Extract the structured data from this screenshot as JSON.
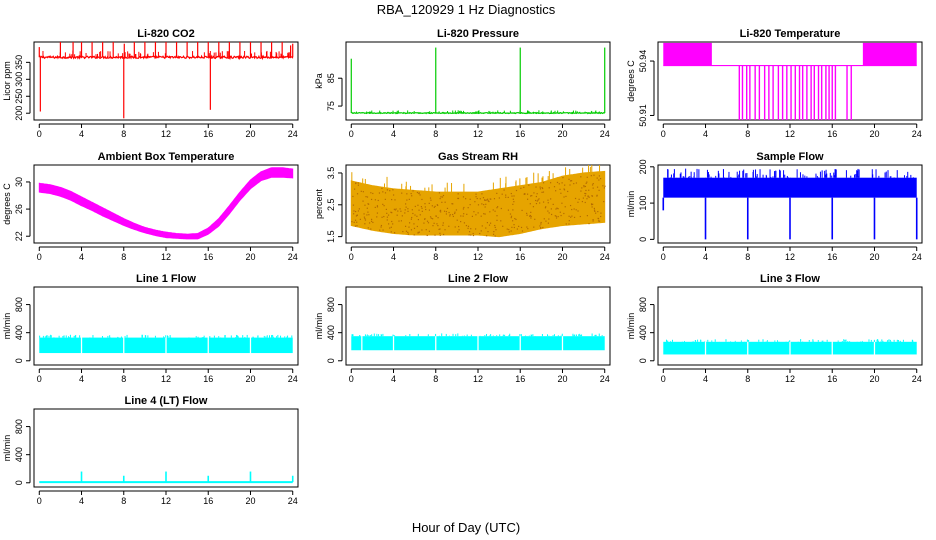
{
  "figure": {
    "title": "RBA_120929  1 Hz Diagnostics",
    "xlabel": "Hour of Day (UTC)"
  },
  "chart_data": [
    {
      "type": "line",
      "title": "Li-820 CO2",
      "ylabel": "Licor ppm",
      "color": "#ff0000",
      "xlim": [
        -0.5,
        24.5
      ],
      "ylim": [
        180,
        410
      ],
      "xticks": [
        0,
        4,
        8,
        12,
        16,
        20,
        24
      ],
      "yticks": [
        200,
        250,
        300,
        350
      ],
      "base": [
        [
          0,
          365
        ],
        [
          24,
          365
        ]
      ],
      "noise": 8,
      "spikes": [
        [
          0,
          395
        ],
        [
          0.1,
          205
        ],
        [
          2,
          410
        ],
        [
          3.2,
          410
        ],
        [
          4,
          410
        ],
        [
          5,
          410
        ],
        [
          6,
          410
        ],
        [
          7,
          410
        ],
        [
          8,
          185
        ],
        [
          8.05,
          405
        ],
        [
          9,
          410
        ],
        [
          10,
          410
        ],
        [
          11,
          410
        ],
        [
          12,
          410
        ],
        [
          13,
          410
        ],
        [
          14,
          410
        ],
        [
          15,
          410
        ],
        [
          16,
          410
        ],
        [
          16.2,
          210
        ],
        [
          17,
          410
        ],
        [
          18,
          410
        ],
        [
          19,
          410
        ],
        [
          20,
          410
        ],
        [
          21,
          410
        ],
        [
          22,
          410
        ],
        [
          23,
          410
        ],
        [
          23.8,
          400
        ],
        [
          24,
          405
        ]
      ]
    },
    {
      "type": "line",
      "title": "Li-820 Pressure",
      "ylabel": "kPa",
      "color": "#00cc00",
      "xlim": [
        -0.5,
        24.5
      ],
      "ylim": [
        70,
        98
      ],
      "xticks": [
        0,
        4,
        8,
        12,
        16,
        20,
        24
      ],
      "yticks": [
        75,
        85
      ],
      "base": [
        [
          0,
          72.5
        ],
        [
          24,
          72.5
        ]
      ],
      "noise": 0.4,
      "spikes": [
        [
          0,
          92
        ],
        [
          8,
          96
        ],
        [
          16,
          96
        ],
        [
          24,
          96
        ]
      ]
    },
    {
      "type": "line",
      "title": "Li-820 Temperature",
      "ylabel": "degrees C",
      "color": "#ff00ff",
      "xlim": [
        -0.5,
        24.5
      ],
      "ylim": [
        50.9075,
        50.9505
      ],
      "xticks": [
        0,
        4,
        8,
        12,
        16,
        20,
        24
      ],
      "yticks": [
        50.91,
        50.94
      ],
      "ytick_labels": [
        "50.91",
        "50.94"
      ],
      "bands": [
        {
          "x0": 0,
          "x1": 4.6,
          "ylow": 50.9375,
          "yhigh": 50.95
        },
        {
          "x0": 18.9,
          "x1": 24,
          "ylow": 50.9375,
          "yhigh": 50.95
        }
      ],
      "baseline": 50.9375,
      "drops": [
        [
          7.2,
          50.9075
        ],
        [
          7.5,
          50.9075
        ],
        [
          7.9,
          50.9075
        ],
        [
          8.2,
          50.9075
        ],
        [
          8.7,
          50.9075
        ],
        [
          9.1,
          50.9075
        ],
        [
          9.6,
          50.9075
        ],
        [
          10.0,
          50.9075
        ],
        [
          10.4,
          50.9075
        ],
        [
          10.9,
          50.9075
        ],
        [
          11.3,
          50.9075
        ],
        [
          11.7,
          50.9075
        ],
        [
          12.1,
          50.9075
        ],
        [
          12.5,
          50.9075
        ],
        [
          12.9,
          50.9075
        ],
        [
          13.2,
          50.9075
        ],
        [
          13.6,
          50.9075
        ],
        [
          14.0,
          50.9075
        ],
        [
          14.3,
          50.9075
        ],
        [
          14.7,
          50.9075
        ],
        [
          15.0,
          50.9075
        ],
        [
          15.4,
          50.9075
        ],
        [
          15.7,
          50.9075
        ],
        [
          16.0,
          50.9075
        ],
        [
          16.3,
          50.9075
        ],
        [
          17.4,
          50.9075
        ],
        [
          17.8,
          50.9075
        ]
      ]
    },
    {
      "type": "area",
      "title": "Ambient Box Temperature",
      "ylabel": "degrees C",
      "color": "#ff00ff",
      "xlim": [
        -0.5,
        24.5
      ],
      "ylim": [
        21,
        32.5
      ],
      "xticks": [
        0,
        4,
        8,
        12,
        16,
        20,
        24
      ],
      "yticks": [
        22,
        26,
        30
      ],
      "x": [
        0,
        1,
        2,
        3,
        4,
        5,
        6,
        7,
        8,
        9,
        10,
        11,
        12,
        13,
        14,
        15,
        16,
        17,
        18,
        19,
        20,
        21,
        22,
        23,
        24
      ],
      "low": [
        28.5,
        28.3,
        27.9,
        27.3,
        26.5,
        25.8,
        25.0,
        24.3,
        23.6,
        23.0,
        22.5,
        22.1,
        21.8,
        21.7,
        21.6,
        21.6,
        22.3,
        23.5,
        25.3,
        27.3,
        29.0,
        30.2,
        30.7,
        30.7,
        30.6
      ],
      "high": [
        29.8,
        29.6,
        29.2,
        28.6,
        27.8,
        27.0,
        26.2,
        25.4,
        24.6,
        23.9,
        23.3,
        22.9,
        22.6,
        22.4,
        22.3,
        22.4,
        23.2,
        24.6,
        26.5,
        28.5,
        30.3,
        31.5,
        32.1,
        32.1,
        31.9
      ]
    },
    {
      "type": "area",
      "title": "Gas Stream RH",
      "ylabel": "percent",
      "color": "#e6a400",
      "xlim": [
        -0.5,
        24.5
      ],
      "ylim": [
        1.3,
        3.75
      ],
      "xticks": [
        0,
        4,
        8,
        12,
        16,
        20,
        24
      ],
      "yticks": [
        1.5,
        2.5,
        3.5
      ],
      "x": [
        0,
        2,
        4,
        6,
        8,
        10,
        12,
        14,
        16,
        18,
        20,
        22,
        24
      ],
      "low": [
        1.85,
        1.7,
        1.6,
        1.55,
        1.55,
        1.55,
        1.55,
        1.5,
        1.6,
        1.75,
        1.85,
        1.9,
        1.95
      ],
      "high": [
        3.25,
        3.1,
        3.0,
        2.95,
        2.9,
        2.9,
        2.9,
        3.0,
        3.1,
        3.2,
        3.4,
        3.5,
        3.55
      ]
    },
    {
      "type": "line",
      "title": "Sample Flow",
      "ylabel": "ml/min",
      "color": "#0000ff",
      "xlim": [
        -0.5,
        24.5
      ],
      "ylim": [
        -10,
        205
      ],
      "xticks": [
        0,
        4,
        8,
        12,
        16,
        20,
        24
      ],
      "yticks": [
        0,
        100,
        200
      ],
      "band": {
        "ylow": 115,
        "yhigh": 170
      },
      "noise_top": 195,
      "drops": [
        [
          0,
          80
        ],
        [
          4,
          0
        ],
        [
          8,
          0
        ],
        [
          12,
          0
        ],
        [
          16,
          0
        ],
        [
          20,
          0
        ],
        [
          24,
          0
        ]
      ]
    },
    {
      "type": "area",
      "title": "Line 1 Flow",
      "ylabel": "ml/min",
      "color": "#00ffff",
      "xlim": [
        -0.5,
        24.5
      ],
      "ylim": [
        -60,
        1050
      ],
      "xticks": [
        0,
        4,
        8,
        12,
        16,
        20,
        24
      ],
      "yticks": [
        0,
        400,
        800
      ],
      "band": {
        "ylow": 110,
        "yhigh": 330
      },
      "gaps": [
        4,
        8,
        12,
        16,
        20
      ],
      "start": 0,
      "end": 24
    },
    {
      "type": "area",
      "title": "Line 2 Flow",
      "ylabel": "ml/min",
      "color": "#00ffff",
      "xlim": [
        -0.5,
        24.5
      ],
      "ylim": [
        -60,
        1050
      ],
      "xticks": [
        0,
        4,
        8,
        12,
        16,
        20,
        24
      ],
      "yticks": [
        0,
        400,
        800
      ],
      "band": {
        "ylow": 150,
        "yhigh": 350
      },
      "gaps": [
        1,
        4,
        8,
        12,
        16,
        20
      ],
      "start": 0,
      "end": 24
    },
    {
      "type": "area",
      "title": "Line 3 Flow",
      "ylabel": "ml/min",
      "color": "#00ffff",
      "xlim": [
        -0.5,
        24.5
      ],
      "ylim": [
        -60,
        1050
      ],
      "xticks": [
        0,
        4,
        8,
        12,
        16,
        20,
        24
      ],
      "yticks": [
        0,
        400,
        800
      ],
      "band": {
        "ylow": 90,
        "yhigh": 270
      },
      "gaps": [
        4,
        8,
        12,
        16,
        20
      ],
      "start": 0,
      "end": 24
    },
    {
      "type": "line",
      "title": "Line 4 (LT) Flow",
      "ylabel": "ml/min",
      "color": "#00ffff",
      "xlim": [
        -0.5,
        24.5
      ],
      "ylim": [
        -60,
        1050
      ],
      "xticks": [
        0,
        4,
        8,
        12,
        16,
        20,
        24
      ],
      "yticks": [
        0,
        400,
        800
      ],
      "base": [
        [
          0,
          10
        ],
        [
          24,
          10
        ]
      ],
      "spikes": [
        [
          4,
          160
        ],
        [
          8,
          100
        ],
        [
          12,
          160
        ],
        [
          16,
          100
        ],
        [
          20,
          160
        ],
        [
          24,
          100
        ]
      ]
    }
  ]
}
